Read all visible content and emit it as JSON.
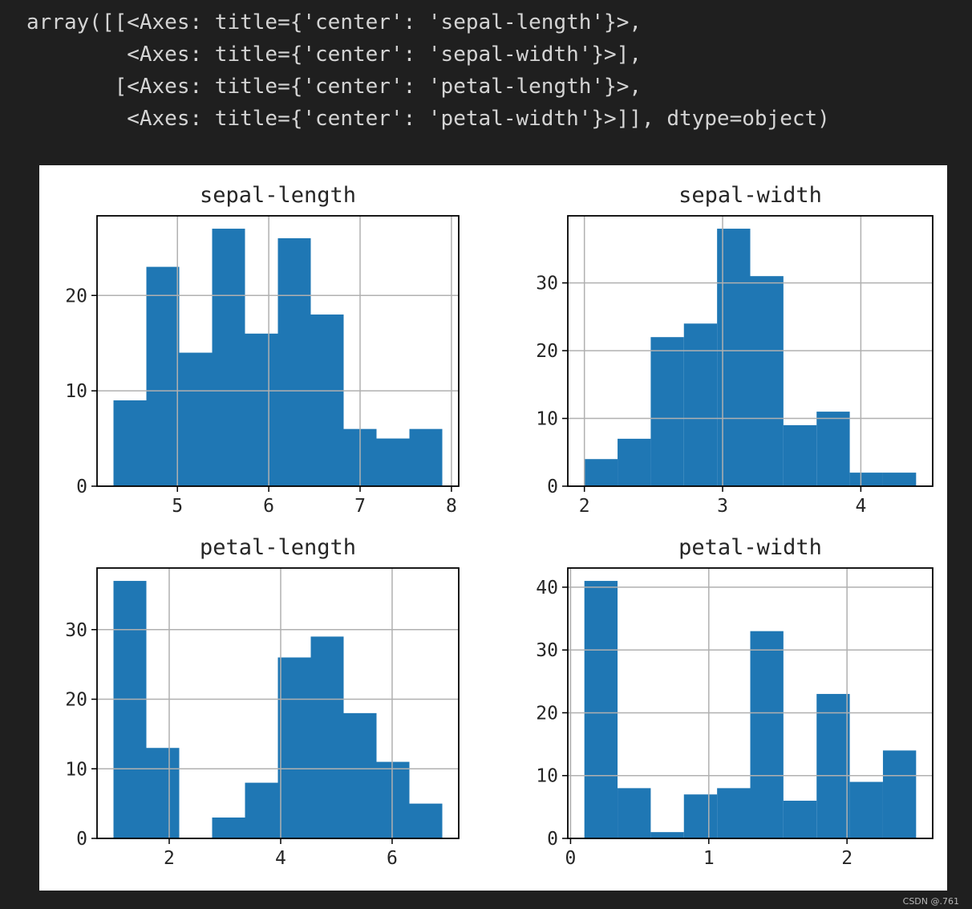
{
  "output_lines": [
    "array([[<Axes: title={'center': 'sepal-length'}>,",
    "        <Axes: title={'center': 'sepal-width'}>],",
    "       [<Axes: title={'center': 'petal-length'}>,",
    "        <Axes: title={'center': 'petal-width'}>]], dtype=object)"
  ],
  "colors": {
    "bar": "#1f77b4",
    "grid": "#b0b0b0",
    "axis": "#000000",
    "background": "#1f1f1f"
  },
  "chart_data": [
    {
      "type": "bar",
      "title": "sepal-length",
      "bin_edges": [
        4.3,
        4.66,
        5.02,
        5.38,
        5.74,
        6.1,
        6.46,
        6.82,
        7.18,
        7.54,
        7.9
      ],
      "values": [
        9,
        23,
        14,
        27,
        16,
        26,
        18,
        6,
        5,
        6
      ],
      "xlim": [
        4.12,
        8.08
      ],
      "ylim": [
        0,
        28.35
      ],
      "xticks": [
        5,
        6,
        7,
        8
      ],
      "xtick_labels": [
        "5",
        "6",
        "7",
        "8"
      ],
      "yticks": [
        0,
        10,
        20
      ],
      "ytick_labels": [
        "0",
        "10",
        "20"
      ],
      "grid": true,
      "xlabel": "",
      "ylabel": ""
    },
    {
      "type": "bar",
      "title": "sepal-width",
      "bin_edges": [
        2.0,
        2.24,
        2.48,
        2.72,
        2.96,
        3.2,
        3.44,
        3.68,
        3.92,
        4.16,
        4.4
      ],
      "values": [
        4,
        7,
        22,
        24,
        38,
        31,
        9,
        11,
        2,
        2
      ],
      "xlim": [
        1.88,
        4.52
      ],
      "ylim": [
        0,
        39.9
      ],
      "xticks": [
        2,
        3,
        4
      ],
      "xtick_labels": [
        "2",
        "3",
        "4"
      ],
      "yticks": [
        0,
        10,
        20,
        30
      ],
      "ytick_labels": [
        "0",
        "10",
        "20",
        "30"
      ],
      "grid": true,
      "xlabel": "",
      "ylabel": ""
    },
    {
      "type": "bar",
      "title": "petal-length",
      "bin_edges": [
        1.0,
        1.59,
        2.18,
        2.77,
        3.36,
        3.95,
        4.54,
        5.13,
        5.72,
        6.31,
        6.9
      ],
      "values": [
        37,
        13,
        0,
        3,
        8,
        26,
        29,
        18,
        11,
        5
      ],
      "xlim": [
        0.705,
        7.195
      ],
      "ylim": [
        0,
        38.85
      ],
      "xticks": [
        2,
        4,
        6
      ],
      "xtick_labels": [
        "2",
        "4",
        "6"
      ],
      "yticks": [
        0,
        10,
        20,
        30
      ],
      "ytick_labels": [
        "0",
        "10",
        "20",
        "30"
      ],
      "grid": true,
      "xlabel": "",
      "ylabel": ""
    },
    {
      "type": "bar",
      "title": "petal-width",
      "bin_edges": [
        0.1,
        0.34,
        0.58,
        0.82,
        1.06,
        1.3,
        1.54,
        1.78,
        2.02,
        2.26,
        2.5
      ],
      "values": [
        41,
        8,
        1,
        7,
        8,
        33,
        6,
        23,
        9,
        14
      ],
      "xlim": [
        -0.02,
        2.62
      ],
      "ylim": [
        0,
        43.05
      ],
      "xticks": [
        0,
        1,
        2
      ],
      "xtick_labels": [
        "0",
        "1",
        "2"
      ],
      "yticks": [
        0,
        10,
        20,
        30,
        40
      ],
      "ytick_labels": [
        "0",
        "10",
        "20",
        "30",
        "40"
      ],
      "grid": true,
      "xlabel": "",
      "ylabel": ""
    }
  ],
  "watermark": "CSDN @.761"
}
